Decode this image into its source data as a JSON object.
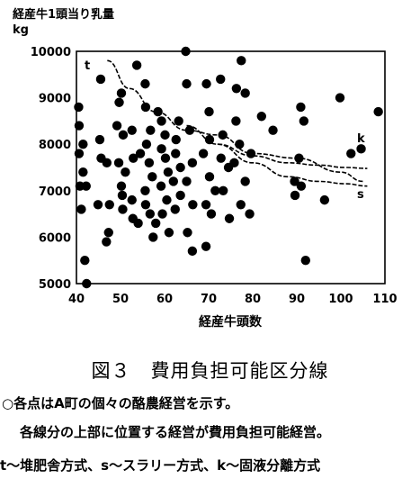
{
  "chart_data": {
    "type": "scatter",
    "ylabel_line1": "経産牛1頭当り乳量",
    "ylabel_line2": "kg",
    "xlabel": "経産牛頭数",
    "xlim": [
      40,
      110
    ],
    "ylim": [
      5000,
      10000
    ],
    "xticks": [
      "40",
      "50",
      "60",
      "70",
      "80",
      "90",
      "100",
      "110"
    ],
    "yticks": [
      "10000",
      "9000",
      "8000",
      "7000",
      "6000",
      "5000"
    ],
    "grid": false,
    "points": [
      {
        "x": 40.5,
        "y": 8800
      },
      {
        "x": 40.6,
        "y": 8400
      },
      {
        "x": 41.5,
        "y": 8000
      },
      {
        "x": 40.6,
        "y": 7800
      },
      {
        "x": 41.5,
        "y": 7400
      },
      {
        "x": 40.8,
        "y": 7100
      },
      {
        "x": 42.2,
        "y": 7100
      },
      {
        "x": 41.1,
        "y": 6600
      },
      {
        "x": 41.9,
        "y": 5500
      },
      {
        "x": 42.3,
        "y": 5000
      },
      {
        "x": 45.5,
        "y": 9400
      },
      {
        "x": 45.3,
        "y": 8100
      },
      {
        "x": 45.6,
        "y": 7700
      },
      {
        "x": 46.9,
        "y": 7600
      },
      {
        "x": 44.9,
        "y": 6700
      },
      {
        "x": 47.5,
        "y": 6700
      },
      {
        "x": 47.3,
        "y": 6100
      },
      {
        "x": 46.8,
        "y": 5900
      },
      {
        "x": 50.2,
        "y": 9100
      },
      {
        "x": 49.7,
        "y": 8900
      },
      {
        "x": 49.2,
        "y": 8400
      },
      {
        "x": 50.6,
        "y": 8200
      },
      {
        "x": 52.6,
        "y": 8300
      },
      {
        "x": 49.6,
        "y": 7600
      },
      {
        "x": 51.1,
        "y": 7400
      },
      {
        "x": 52.9,
        "y": 7700
      },
      {
        "x": 54.5,
        "y": 7800
      },
      {
        "x": 50.2,
        "y": 7100
      },
      {
        "x": 50.4,
        "y": 6900
      },
      {
        "x": 50.5,
        "y": 6600
      },
      {
        "x": 52.6,
        "y": 6800
      },
      {
        "x": 52.8,
        "y": 6400
      },
      {
        "x": 54.0,
        "y": 6300
      },
      {
        "x": 53.7,
        "y": 9700
      },
      {
        "x": 55.6,
        "y": 9300
      },
      {
        "x": 55.7,
        "y": 8800
      },
      {
        "x": 56.8,
        "y": 8300
      },
      {
        "x": 55.9,
        "y": 8000
      },
      {
        "x": 56.5,
        "y": 7600
      },
      {
        "x": 57.2,
        "y": 7300
      },
      {
        "x": 55.6,
        "y": 7000
      },
      {
        "x": 55.7,
        "y": 6700
      },
      {
        "x": 56.7,
        "y": 6500
      },
      {
        "x": 58.0,
        "y": 6300
      },
      {
        "x": 57.4,
        "y": 6000
      },
      {
        "x": 58.5,
        "y": 8700
      },
      {
        "x": 59.3,
        "y": 8500
      },
      {
        "x": 60.1,
        "y": 8200
      },
      {
        "x": 59.3,
        "y": 7900
      },
      {
        "x": 60.2,
        "y": 7700
      },
      {
        "x": 60.8,
        "y": 7400
      },
      {
        "x": 59.2,
        "y": 7100
      },
      {
        "x": 60.5,
        "y": 6800
      },
      {
        "x": 59.5,
        "y": 6500
      },
      {
        "x": 61.0,
        "y": 6100
      },
      {
        "x": 63.2,
        "y": 8500
      },
      {
        "x": 62.6,
        "y": 8100
      },
      {
        "x": 62.5,
        "y": 7800
      },
      {
        "x": 63.6,
        "y": 7500
      },
      {
        "x": 62.0,
        "y": 7200
      },
      {
        "x": 63.6,
        "y": 6900
      },
      {
        "x": 62.4,
        "y": 6600
      },
      {
        "x": 64.8,
        "y": 10000
      },
      {
        "x": 65.0,
        "y": 9300
      },
      {
        "x": 65.7,
        "y": 8300
      },
      {
        "x": 66.3,
        "y": 7600
      },
      {
        "x": 65.0,
        "y": 7200
      },
      {
        "x": 66.4,
        "y": 6700
      },
      {
        "x": 65.2,
        "y": 6100
      },
      {
        "x": 66.3,
        "y": 5700
      },
      {
        "x": 69.5,
        "y": 9300
      },
      {
        "x": 70.1,
        "y": 8700
      },
      {
        "x": 70.2,
        "y": 8100
      },
      {
        "x": 68.8,
        "y": 7800
      },
      {
        "x": 70.2,
        "y": 7300
      },
      {
        "x": 71.5,
        "y": 7000
      },
      {
        "x": 69.4,
        "y": 6700
      },
      {
        "x": 70.6,
        "y": 6500
      },
      {
        "x": 69.4,
        "y": 5800
      },
      {
        "x": 72.7,
        "y": 9400
      },
      {
        "x": 73.2,
        "y": 8200
      },
      {
        "x": 72.8,
        "y": 7700
      },
      {
        "x": 74.5,
        "y": 7500
      },
      {
        "x": 73.3,
        "y": 7000
      },
      {
        "x": 74.7,
        "y": 6400
      },
      {
        "x": 77.4,
        "y": 9800
      },
      {
        "x": 76.3,
        "y": 9200
      },
      {
        "x": 76.2,
        "y": 8500
      },
      {
        "x": 77.0,
        "y": 8000
      },
      {
        "x": 75.8,
        "y": 7600
      },
      {
        "x": 78.3,
        "y": 7200
      },
      {
        "x": 77.3,
        "y": 6700
      },
      {
        "x": 79.3,
        "y": 6500
      },
      {
        "x": 78.3,
        "y": 9100
      },
      {
        "x": 79.6,
        "y": 7800
      },
      {
        "x": 82.0,
        "y": 8600
      },
      {
        "x": 84.6,
        "y": 8300
      },
      {
        "x": 90.9,
        "y": 8800
      },
      {
        "x": 91.6,
        "y": 8500
      },
      {
        "x": 90.5,
        "y": 7700
      },
      {
        "x": 89.5,
        "y": 7200
      },
      {
        "x": 91.0,
        "y": 7100
      },
      {
        "x": 89.6,
        "y": 6900
      },
      {
        "x": 92.0,
        "y": 5500
      },
      {
        "x": 96.3,
        "y": 6800
      },
      {
        "x": 99.8,
        "y": 9000
      },
      {
        "x": 102.3,
        "y": 7800
      },
      {
        "x": 104.6,
        "y": 7900
      },
      {
        "x": 108.5,
        "y": 8700
      }
    ],
    "curves": [
      {
        "name": "t",
        "x": [
          47,
          52,
          58,
          65,
          72,
          80,
          90,
          100,
          105
        ],
        "y": [
          9800,
          9200,
          8700,
          8300,
          8200,
          7800,
          7700,
          7400,
          7200
        ]
      },
      {
        "name": "k",
        "x": [
          65,
          72,
          80,
          88,
          95,
          101,
          106
        ],
        "y": [
          8400,
          8000,
          7750,
          7600,
          7550,
          7500,
          7480
        ]
      },
      {
        "name": "s",
        "x": [
          72,
          80,
          88,
          95,
          101,
          106
        ],
        "y": [
          8000,
          7600,
          7300,
          7200,
          7150,
          7100
        ]
      }
    ],
    "curve_labels": {
      "t": "t",
      "k": "k",
      "s": "s"
    }
  },
  "caption": {
    "title": "図３　費用負担可能区分線",
    "note1": "○各点はA町の個々の酪農経営を示す。",
    "note2": "各線分の上部に位置する経営が費用負担可能経営。",
    "note3": "t～堆肥舎方式、s～スラリー方式、k～固液分離方式"
  }
}
